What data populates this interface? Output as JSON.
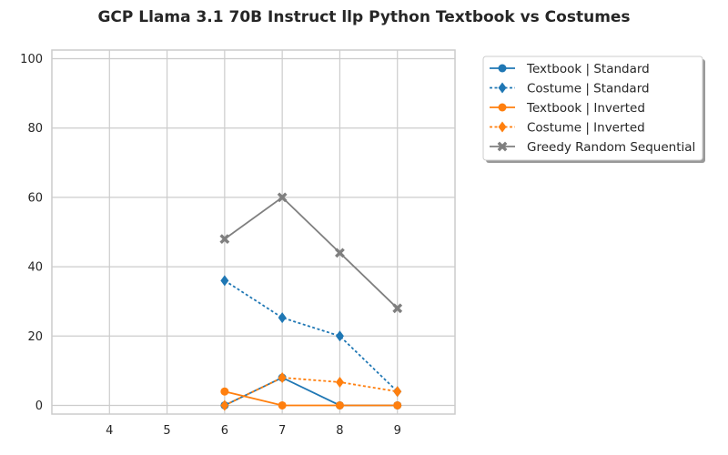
{
  "chart_data": {
    "type": "line",
    "title": "GCP Llama 3.1 70B Instruct llp Python Textbook vs Costumes",
    "xlabel": "",
    "ylabel": "",
    "xlim": [
      3,
      10
    ],
    "ylim": [
      -2.5,
      102.5
    ],
    "xticks": [
      4,
      5,
      6,
      7,
      8,
      9
    ],
    "yticks": [
      0,
      20,
      40,
      60,
      80,
      100
    ],
    "grid": true,
    "legend_position": "outside-right-top",
    "series": [
      {
        "name": "Textbook | Standard",
        "color": "#1f77b4",
        "linestyle": "solid",
        "marker": "circle",
        "x": [
          6,
          7,
          8,
          9
        ],
        "y": [
          0,
          8,
          0,
          0
        ]
      },
      {
        "name": "Costume | Standard",
        "color": "#1f77b4",
        "linestyle": "dotted",
        "marker": "diamond",
        "x": [
          6,
          7,
          8,
          9
        ],
        "y": [
          36,
          25.3,
          20,
          4
        ]
      },
      {
        "name": "Textbook | Inverted",
        "color": "#ff7f0e",
        "linestyle": "solid",
        "marker": "circle",
        "x": [
          6,
          7,
          8,
          9
        ],
        "y": [
          4,
          0,
          0,
          0
        ]
      },
      {
        "name": "Costume | Inverted",
        "color": "#ff7f0e",
        "linestyle": "dotted",
        "marker": "diamond",
        "x": [
          6,
          7,
          8,
          9
        ],
        "y": [
          0,
          8,
          6.7,
          4
        ]
      },
      {
        "name": "Greedy Random Sequential",
        "color": "#7f7f7f",
        "linestyle": "solid",
        "marker": "x",
        "x": [
          6,
          7,
          8,
          9
        ],
        "y": [
          48,
          60,
          44,
          28
        ]
      }
    ]
  }
}
